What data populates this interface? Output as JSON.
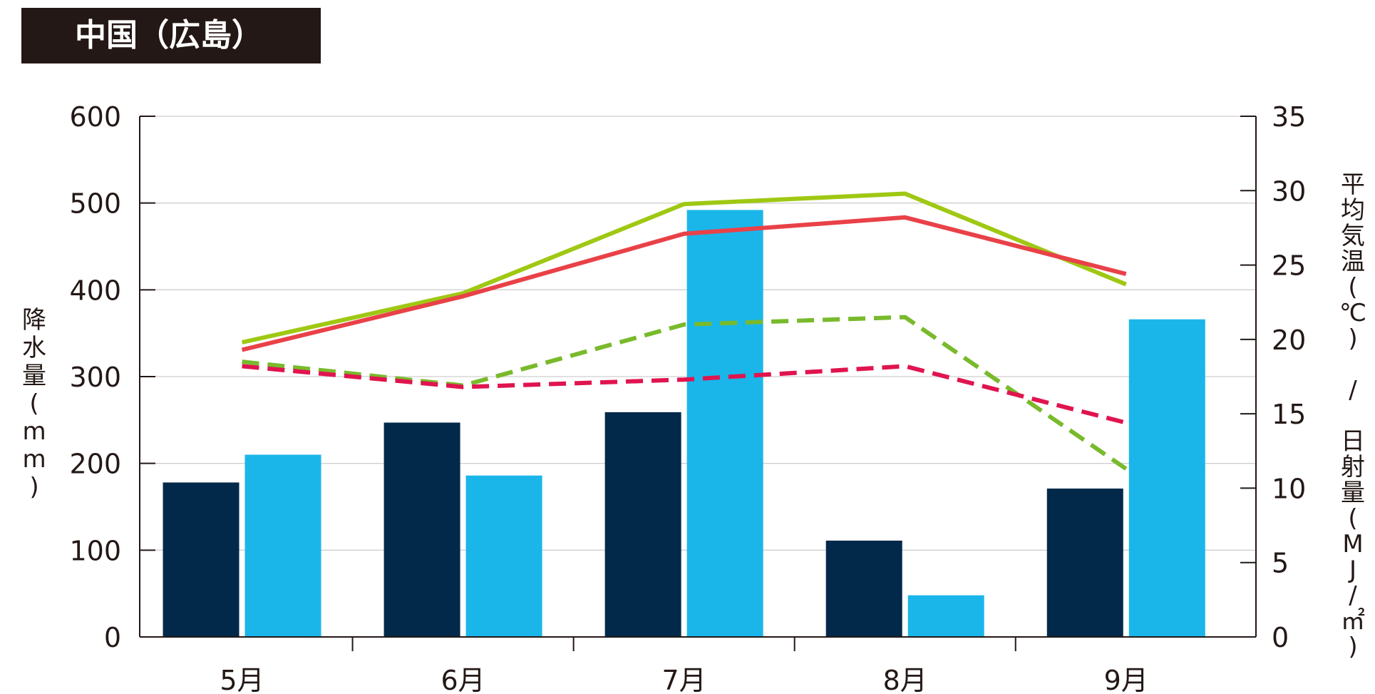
{
  "chart_data": {
    "type": "bar",
    "title": "中国（広島）",
    "categories": [
      "5月",
      "6月",
      "7月",
      "8月",
      "9月"
    ],
    "y_left": {
      "label": "降水量(mm)",
      "range": [
        0,
        600
      ],
      "ticks": [
        "0",
        "100",
        "200",
        "300",
        "400",
        "500",
        "600"
      ]
    },
    "y_right": {
      "label": "平均気温(℃) / 日射量(MJ/㎡)",
      "range": [
        0,
        35
      ],
      "ticks": [
        "0",
        "5",
        "10",
        "15",
        "20",
        "25",
        "30",
        "35"
      ]
    },
    "bar_series": [
      {
        "axis": "left",
        "color": "#03294A",
        "values": [
          178,
          247,
          259,
          111,
          171
        ]
      },
      {
        "axis": "left",
        "color": "#1AB6EA",
        "values": [
          210,
          186,
          492,
          48,
          366
        ]
      }
    ],
    "line_series": [
      {
        "axis": "right",
        "style": "solid",
        "color": "#9FC813",
        "values": [
          19.8,
          23.1,
          29.1,
          29.8,
          23.7
        ]
      },
      {
        "axis": "right",
        "style": "solid",
        "color": "#E94148",
        "values": [
          19.3,
          22.9,
          27.1,
          28.2,
          24.4
        ]
      },
      {
        "axis": "right",
        "style": "dashed",
        "color": "#79BA2C",
        "values": [
          18.5,
          16.9,
          21.0,
          21.5,
          11.3
        ]
      },
      {
        "axis": "right",
        "style": "dashed",
        "color": "#E0144F",
        "values": [
          18.2,
          16.8,
          17.3,
          18.2,
          14.4
        ]
      }
    ],
    "grid": true
  }
}
